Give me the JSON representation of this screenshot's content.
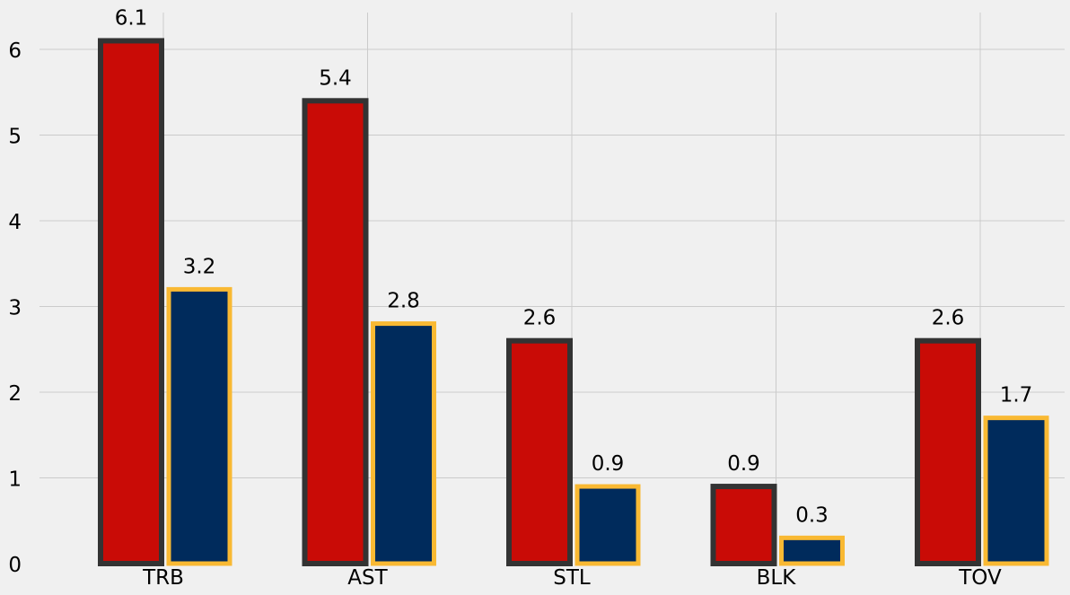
{
  "chart_data": {
    "type": "bar",
    "categories": [
      "TRB",
      "AST",
      "STL",
      "BLK",
      "TOV"
    ],
    "series": [
      {
        "values": [
          6.1,
          5.4,
          2.6,
          0.9,
          2.6
        ],
        "fill": "#c90b06",
        "edge": "#333333"
      },
      {
        "values": [
          3.2,
          2.8,
          0.9,
          0.3,
          1.7
        ],
        "fill": "#002b5c",
        "edge": "#f9b933"
      }
    ],
    "ylim": [
      0,
      6.35
    ],
    "yticks": [
      "0",
      "1",
      "2",
      "3",
      "4",
      "5",
      "6"
    ],
    "grid": true,
    "background": "#f0f0f0"
  }
}
